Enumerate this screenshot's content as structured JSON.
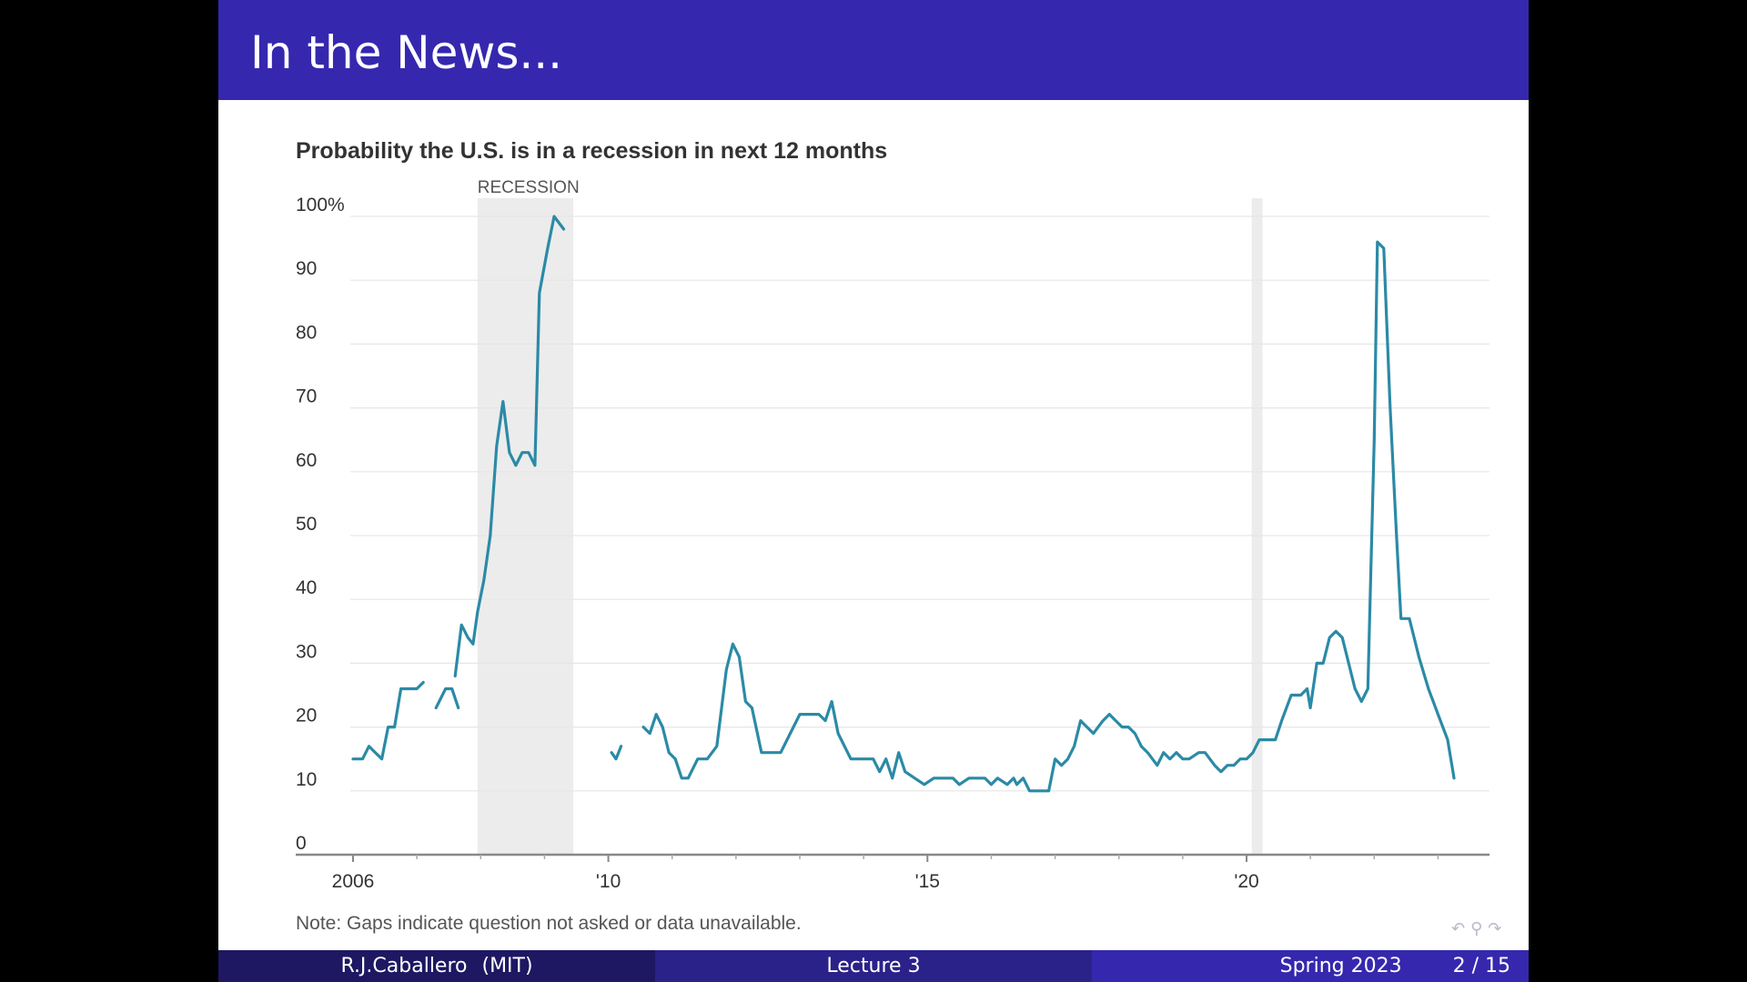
{
  "slide": {
    "title": "In the News...",
    "note": "Note: Gaps indicate question not asked or data unavailable."
  },
  "footer": {
    "author": "R.J.Caballero",
    "institution": "(MIT)",
    "lecture": "Lecture 3",
    "term": "Spring 2023",
    "page": "2 / 15"
  },
  "nav_icons": [
    "undo-icon",
    "search-icon",
    "redo-icon"
  ],
  "colors": {
    "title_bar": "#3528ae",
    "line": "#2b8aa6",
    "recession_shade": "#ececec",
    "footer_dark": "#1e1862",
    "footer_mid": "#2b2289"
  },
  "chart_data": {
    "type": "line",
    "title": "Probability the U.S. is in a recession in next 12 months",
    "xlabel": "",
    "ylabel": "",
    "xlim": [
      2005.8,
      2023.0
    ],
    "ylim": [
      0,
      100
    ],
    "y_ticks": [
      {
        "value": 100,
        "label": "100%"
      },
      {
        "value": 90,
        "label": "90"
      },
      {
        "value": 80,
        "label": "80"
      },
      {
        "value": 70,
        "label": "70"
      },
      {
        "value": 60,
        "label": "60"
      },
      {
        "value": 50,
        "label": "50"
      },
      {
        "value": 40,
        "label": "40"
      },
      {
        "value": 30,
        "label": "30"
      },
      {
        "value": 20,
        "label": "20"
      },
      {
        "value": 10,
        "label": "10"
      },
      {
        "value": 0,
        "label": "0"
      }
    ],
    "x_ticks": [
      {
        "value": 2006,
        "label": "2006"
      },
      {
        "value": 2010,
        "label": "'10"
      },
      {
        "value": 2015,
        "label": "'15"
      },
      {
        "value": 2020,
        "label": "'20"
      }
    ],
    "minor_x_ticks": [
      2007,
      2008,
      2009,
      2011,
      2012,
      2013,
      2014,
      2016,
      2017,
      2018,
      2019,
      2021,
      2022,
      2023
    ],
    "recession_periods": [
      {
        "start": 2007.95,
        "end": 2009.45,
        "label": "RECESSION"
      },
      {
        "start": 2020.08,
        "end": 2020.25,
        "label": ""
      }
    ],
    "grid": true,
    "segments": [
      [
        [
          2006.0,
          15
        ],
        [
          2006.15,
          15
        ],
        [
          2006.25,
          17
        ],
        [
          2006.35,
          16
        ],
        [
          2006.45,
          15
        ],
        [
          2006.55,
          20
        ],
        [
          2006.65,
          20
        ],
        [
          2006.75,
          26
        ],
        [
          2006.9,
          26
        ],
        [
          2007.0,
          26
        ],
        [
          2007.1,
          27
        ]
      ],
      [
        [
          2007.3,
          23
        ],
        [
          2007.45,
          26
        ],
        [
          2007.55,
          26
        ],
        [
          2007.65,
          23
        ]
      ],
      [
        [
          2007.6,
          28
        ],
        [
          2007.7,
          36
        ],
        [
          2007.8,
          34
        ],
        [
          2007.88,
          33
        ],
        [
          2007.95,
          38
        ],
        [
          2008.05,
          43
        ],
        [
          2008.15,
          50
        ],
        [
          2008.25,
          64
        ],
        [
          2008.35,
          71
        ],
        [
          2008.45,
          63
        ],
        [
          2008.55,
          61
        ],
        [
          2008.65,
          63
        ],
        [
          2008.75,
          63
        ],
        [
          2008.85,
          61
        ],
        [
          2008.92,
          88
        ],
        [
          2009.05,
          95
        ],
        [
          2009.15,
          100
        ],
        [
          2009.3,
          98
        ]
      ],
      [
        [
          2010.05,
          16
        ],
        [
          2010.12,
          15
        ],
        [
          2010.2,
          17
        ]
      ],
      [
        [
          2010.55,
          20
        ],
        [
          2010.65,
          19
        ],
        [
          2010.75,
          22
        ],
        [
          2010.85,
          20
        ],
        [
          2010.95,
          16
        ],
        [
          2011.05,
          15
        ],
        [
          2011.15,
          12
        ],
        [
          2011.25,
          12
        ],
        [
          2011.4,
          15
        ],
        [
          2011.55,
          15
        ],
        [
          2011.7,
          17
        ],
        [
          2011.85,
          29
        ],
        [
          2011.95,
          33
        ],
        [
          2012.05,
          31
        ],
        [
          2012.15,
          24
        ],
        [
          2012.25,
          23
        ],
        [
          2012.4,
          16
        ],
        [
          2012.7,
          16
        ],
        [
          2012.85,
          19
        ],
        [
          2013.0,
          22
        ],
        [
          2013.15,
          22
        ],
        [
          2013.3,
          22
        ],
        [
          2013.4,
          21
        ],
        [
          2013.5,
          24
        ],
        [
          2013.6,
          19
        ],
        [
          2013.8,
          15
        ],
        [
          2014.0,
          15
        ],
        [
          2014.15,
          15
        ],
        [
          2014.25,
          13
        ],
        [
          2014.35,
          15
        ],
        [
          2014.45,
          12
        ],
        [
          2014.55,
          16
        ],
        [
          2014.65,
          13
        ],
        [
          2014.8,
          12
        ],
        [
          2014.95,
          11
        ],
        [
          2015.1,
          12
        ],
        [
          2015.4,
          12
        ],
        [
          2015.5,
          11
        ],
        [
          2015.65,
          12
        ],
        [
          2015.9,
          12
        ],
        [
          2016.0,
          11
        ],
        [
          2016.1,
          12
        ],
        [
          2016.25,
          11
        ],
        [
          2016.35,
          12
        ],
        [
          2016.4,
          11
        ],
        [
          2016.5,
          12
        ],
        [
          2016.6,
          10
        ],
        [
          2016.9,
          10
        ],
        [
          2017.0,
          15
        ],
        [
          2017.1,
          14
        ],
        [
          2017.2,
          15
        ],
        [
          2017.3,
          17
        ],
        [
          2017.4,
          21
        ],
        [
          2017.5,
          20
        ],
        [
          2017.6,
          19
        ],
        [
          2017.75,
          21
        ],
        [
          2017.85,
          22
        ],
        [
          2017.95,
          21
        ],
        [
          2018.05,
          20
        ],
        [
          2018.15,
          20
        ],
        [
          2018.25,
          19
        ],
        [
          2018.35,
          17
        ],
        [
          2018.45,
          16
        ],
        [
          2018.6,
          14
        ],
        [
          2018.7,
          16
        ],
        [
          2018.8,
          15
        ],
        [
          2018.9,
          16
        ],
        [
          2019.0,
          15
        ],
        [
          2019.1,
          15
        ],
        [
          2019.25,
          16
        ],
        [
          2019.35,
          16
        ],
        [
          2019.5,
          14
        ],
        [
          2019.6,
          13
        ],
        [
          2019.7,
          14
        ],
        [
          2019.8,
          14
        ],
        [
          2019.9,
          15
        ],
        [
          2020.0,
          15
        ],
        [
          2020.1,
          16
        ],
        [
          2020.2,
          18
        ],
        [
          2020.3,
          18
        ],
        [
          2020.45,
          18
        ],
        [
          2020.55,
          21
        ],
        [
          2020.7,
          25
        ],
        [
          2020.85,
          25
        ],
        [
          2020.95,
          26
        ],
        [
          2021.0,
          23
        ],
        [
          2021.1,
          30
        ],
        [
          2021.2,
          30
        ],
        [
          2021.3,
          34
        ],
        [
          2021.4,
          35
        ],
        [
          2021.5,
          34
        ],
        [
          2021.6,
          30
        ],
        [
          2021.7,
          26
        ],
        [
          2021.8,
          24
        ],
        [
          2021.9,
          26
        ],
        [
          2022.0,
          65
        ],
        [
          2022.05,
          96
        ],
        [
          2022.15,
          95
        ],
        [
          2022.25,
          70
        ],
        [
          2022.35,
          50
        ],
        [
          2022.42,
          37
        ],
        [
          2022.55,
          37
        ],
        [
          2022.7,
          31
        ],
        [
          2022.85,
          26
        ],
        [
          2023.0,
          22
        ],
        [
          2023.15,
          18
        ],
        [
          2023.25,
          12
        ]
      ]
    ]
  }
}
